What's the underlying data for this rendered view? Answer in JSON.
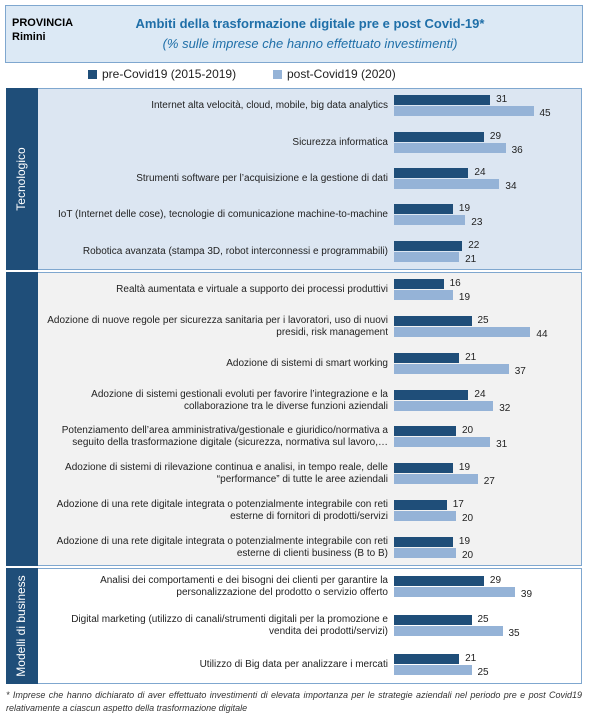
{
  "chart_data": {
    "type": "bar",
    "orientation": "horizontal",
    "header_label": "PROVINCIA",
    "header_place": "Rimini",
    "title": "Ambiti della trasformazione digitale pre e post Covid-19*",
    "subtitle": "(% sulle imprese che hanno effettuato investimenti)",
    "groups": [
      {
        "name": "Tecnologico",
        "categories": [
          "Internet alta velocità, cloud, mobile, big data analytics",
          "Sicurezza informatica",
          "Strumenti software  per l’acquisizione e la gestione di dati",
          "IoT (Internet delle cose), tecnologie di comunicazione machine-to-machine",
          "Robotica avanzata (stampa 3D, robot interconnessi e programmabili)"
        ]
      },
      {
        "name": null,
        "categories": [
          "Realtà aumentata e virtuale a supporto dei processi produttivi",
          "Adozione di nuove regole per sicurezza sanitaria per i lavoratori, uso di nuovi presidi, risk management",
          "Adozione di sistemi di smart working",
          "Adozione di sistemi gestionali evoluti per favorire l’integrazione e la collaborazione tra le diverse funzioni aziendali",
          "Potenziamento dell’area amministrativa/gestionale e giuridico/normativa a seguito della trasformazione digitale (sicurezza, normativa sul lavoro,…",
          "Adozione di sistemi di rilevazione continua e analisi, in tempo reale, delle “performance” di tutte le aree aziendali",
          "Adozione di una rete digitale integrata o potenzialmente integrabile con reti esterne di fornitori di prodotti/servizi",
          "Adozione di una rete digitale integrata o potenzialmente integrabile con reti esterne di clienti business (B to B)"
        ]
      },
      {
        "name": "Modelli di business",
        "categories": [
          "Analisi dei comportamenti e dei bisogni dei clienti per garantire la personalizzazione del prodotto o servizio offerto",
          "Digital marketing (utilizzo di canali/strumenti digitali per la promozione e vendita dei prodotti/servizi)",
          "Utilizzo di Big data per analizzare i mercati"
        ]
      }
    ],
    "series": [
      {
        "name": "pre-Covid19 (2015-2019)",
        "color": "#1f4e79",
        "values": [
          [
            31,
            29,
            24,
            19,
            22
          ],
          [
            16,
            25,
            21,
            24,
            20,
            19,
            17,
            19
          ],
          [
            29,
            25,
            21
          ]
        ]
      },
      {
        "name": "post-Covid19 (2020)",
        "color": "#95b3d7",
        "values": [
          [
            45,
            36,
            34,
            23,
            21
          ],
          [
            19,
            44,
            37,
            32,
            31,
            27,
            20,
            20
          ],
          [
            39,
            35,
            25
          ]
        ]
      }
    ],
    "footnote": "* Imprese che hanno dichiarato di aver effettuato investimenti di elevata importanza per le strategie aziendali nel periodo pre e post Covid19 relativamente a ciascun aspetto della trasformazione digitale"
  }
}
